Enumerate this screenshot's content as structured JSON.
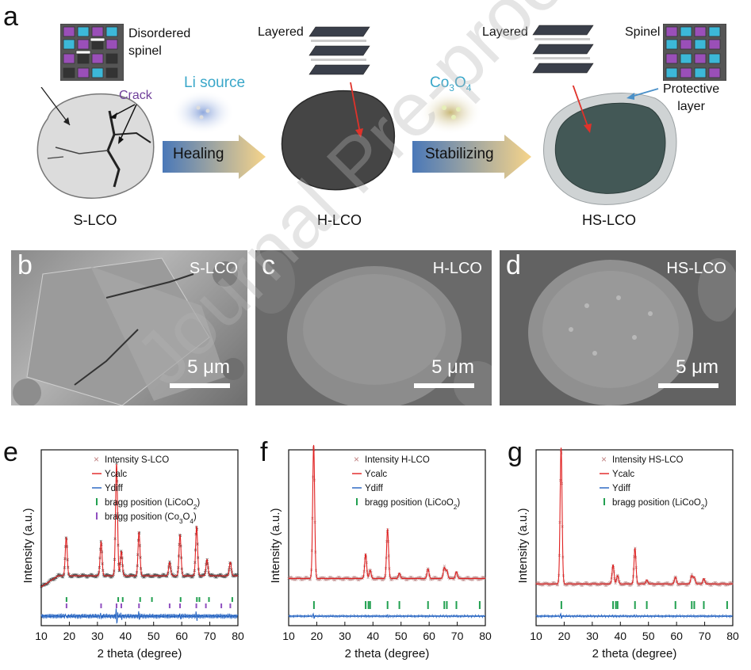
{
  "panels": {
    "a": "a",
    "b": "b",
    "c": "c",
    "d": "d",
    "e": "e",
    "f": "f",
    "g": "g"
  },
  "schematic": {
    "disordered_spinel": "Disordered\nspinel",
    "crack": "Crack",
    "layered1": "Layered",
    "layered2": "Layered",
    "spinel": "Spinel",
    "protective_layer": "Protective\nlayer",
    "li_source": "Li source",
    "co3o4": "Co3O4",
    "healing": "Healing",
    "stabilizing": "Stabilizing",
    "s_lco": "S-LCO",
    "h_lco": "H-LCO",
    "hs_lco": "HS-LCO",
    "colors": {
      "arrow_start": "#4a78b8",
      "arrow_end": "#f6d48a",
      "li_text": "#3aa7c9",
      "crack_text": "#6f3f9a",
      "red_arrow": "#e0322a",
      "blue_arrow": "#4a90c8"
    }
  },
  "sem": {
    "b": {
      "name": "S-LCO",
      "scale": "5 μm"
    },
    "c": {
      "name": "H-LCO",
      "scale": "5 μm"
    },
    "d": {
      "name": "HS-LCO",
      "scale": "5 μm"
    }
  },
  "watermark": "Journal Pre-proof",
  "chart_data": [
    {
      "type": "line",
      "panel": "e",
      "xlabel": "2 theta (degree)",
      "ylabel": "Intensity (a.u.)",
      "xlim": [
        10,
        80
      ],
      "xticks": [
        10,
        20,
        30,
        40,
        50,
        60,
        70,
        80
      ],
      "legend": [
        "Intensity S-LCO",
        "Ycalc",
        "Ydiff",
        "bragg position (LiCoO2)",
        "bragg position (Co3O4)"
      ],
      "baseline": 0.18,
      "peaks": [
        [
          18.9,
          0.28
        ],
        [
          31.3,
          0.25
        ],
        [
          36.8,
          0.82
        ],
        [
          38.5,
          0.18
        ],
        [
          44.8,
          0.32
        ],
        [
          55.7,
          0.1
        ],
        [
          59.4,
          0.3
        ],
        [
          65.3,
          0.36
        ],
        [
          69.0,
          0.12
        ],
        [
          77.3,
          0.1
        ]
      ],
      "bragg_licoo2": [
        19.0,
        37.4,
        39.0,
        45.2,
        49.4,
        59.6,
        65.4,
        66.3,
        69.7,
        78.0
      ],
      "bragg_co3o4": [
        19.0,
        31.3,
        36.8,
        38.5,
        44.8,
        55.7,
        59.4,
        65.2,
        68.6,
        74.1,
        77.3
      ],
      "colors": {
        "obs": "#b07070",
        "calc": "#e02020",
        "diff": "#2060c0",
        "bragg1": "#22a050",
        "bragg2": "#9050c0"
      }
    },
    {
      "type": "line",
      "panel": "f",
      "xlabel": "2 theta (degree)",
      "ylabel": "Intensity (a.u.)",
      "xlim": [
        10,
        80
      ],
      "xticks": [
        10,
        20,
        30,
        40,
        50,
        60,
        70,
        80
      ],
      "legend": [
        "Intensity H-LCO",
        "Ycalc",
        "Ydiff",
        "bragg position (LiCoO2)"
      ],
      "baseline": 0.16,
      "peaks": [
        [
          18.9,
          0.98
        ],
        [
          37.4,
          0.18
        ],
        [
          39.0,
          0.06
        ],
        [
          45.2,
          0.36
        ],
        [
          49.4,
          0.04
        ],
        [
          59.6,
          0.07
        ],
        [
          65.4,
          0.08
        ],
        [
          66.3,
          0.06
        ],
        [
          69.7,
          0.05
        ]
      ],
      "bragg_licoo2": [
        19.0,
        37.4,
        38.4,
        39.0,
        45.2,
        49.4,
        59.6,
        65.4,
        66.3,
        69.7,
        78.0
      ],
      "colors": {
        "obs": "#b07070",
        "calc": "#e02020",
        "diff": "#2060c0",
        "bragg1": "#22a050"
      }
    },
    {
      "type": "line",
      "panel": "g",
      "xlabel": "2 theta (degree)",
      "ylabel": "Intensity (a.u.)",
      "xlim": [
        10,
        80
      ],
      "xticks": [
        10,
        20,
        30,
        40,
        50,
        60,
        70,
        80
      ],
      "legend": [
        "Intensity HS-LCO",
        "Ycalc",
        "Ydiff",
        "bragg position (LiCoO2)"
      ],
      "baseline": 0.12,
      "peaks": [
        [
          18.9,
          1.0
        ],
        [
          37.4,
          0.14
        ],
        [
          39.0,
          0.06
        ],
        [
          45.2,
          0.26
        ],
        [
          49.4,
          0.03
        ],
        [
          59.6,
          0.05
        ],
        [
          65.4,
          0.06
        ],
        [
          66.3,
          0.05
        ],
        [
          69.7,
          0.04
        ]
      ],
      "bragg_licoo2": [
        19.0,
        37.4,
        38.4,
        39.0,
        45.2,
        49.4,
        59.6,
        65.4,
        66.3,
        69.7,
        78.0
      ],
      "colors": {
        "obs": "#b07070",
        "calc": "#e02020",
        "diff": "#2060c0",
        "bragg1": "#22a050"
      }
    }
  ]
}
